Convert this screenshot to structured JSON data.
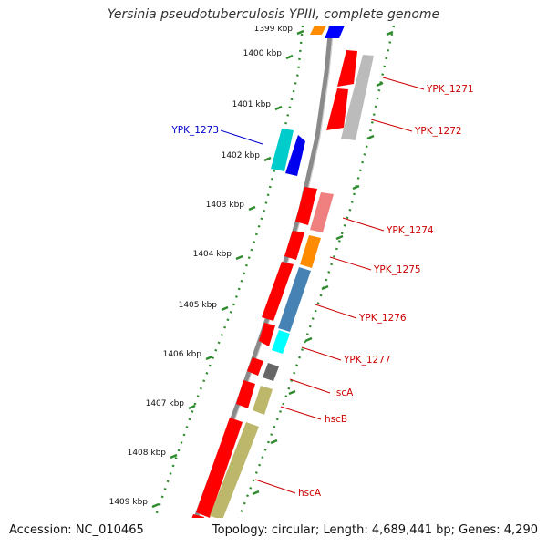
{
  "title": "Yersinia pseudotuberculosis YPIII, complete genome",
  "accession_label": "Accession: NC_010465",
  "summary_label": "Topology: circular; Length: 4,689,441 bp; Genes: 4,290",
  "ticks": [
    {
      "label": "1399 kbp",
      "kbp": 1399
    },
    {
      "label": "1400 kbp",
      "kbp": 1400
    },
    {
      "label": "1401 kbp",
      "kbp": 1401
    },
    {
      "label": "1402 kbp",
      "kbp": 1402
    },
    {
      "label": "1403 kbp",
      "kbp": 1403
    },
    {
      "label": "1404 kbp",
      "kbp": 1404
    },
    {
      "label": "1405 kbp",
      "kbp": 1405
    },
    {
      "label": "1406 kbp",
      "kbp": 1406
    },
    {
      "label": "1407 kbp",
      "kbp": 1407
    },
    {
      "label": "1408 kbp",
      "kbp": 1408
    },
    {
      "label": "1409 kbp",
      "kbp": 1409
    }
  ],
  "gene_labels": [
    {
      "name": "YPK_1271",
      "color": "#cc0000"
    },
    {
      "name": "YPK_1272",
      "color": "#cc0000"
    },
    {
      "name": "YPK_1273",
      "color": "#0000cc"
    },
    {
      "name": "YPK_1274",
      "color": "#cc0000"
    },
    {
      "name": "YPK_1275",
      "color": "#cc0000"
    },
    {
      "name": "YPK_1276",
      "color": "#cc0000"
    },
    {
      "name": "YPK_1277",
      "color": "#cc0000"
    },
    {
      "name": "iscA",
      "color": "#cc0000"
    },
    {
      "name": "hscB",
      "color": "#cc0000"
    },
    {
      "name": "hscA",
      "color": "#cc0000"
    }
  ],
  "colors": {
    "cds": "#ff0000",
    "backbone": "#888888",
    "tick": "#2e8b2e",
    "orange": "#ff8c00",
    "blue": "#0000ff",
    "cyan": "#00dddd",
    "grey": "#bbbbbb",
    "pink": "#f08080",
    "steel": "#4682b4",
    "darkgrey": "#666666",
    "khaki": "#bdb76b"
  }
}
